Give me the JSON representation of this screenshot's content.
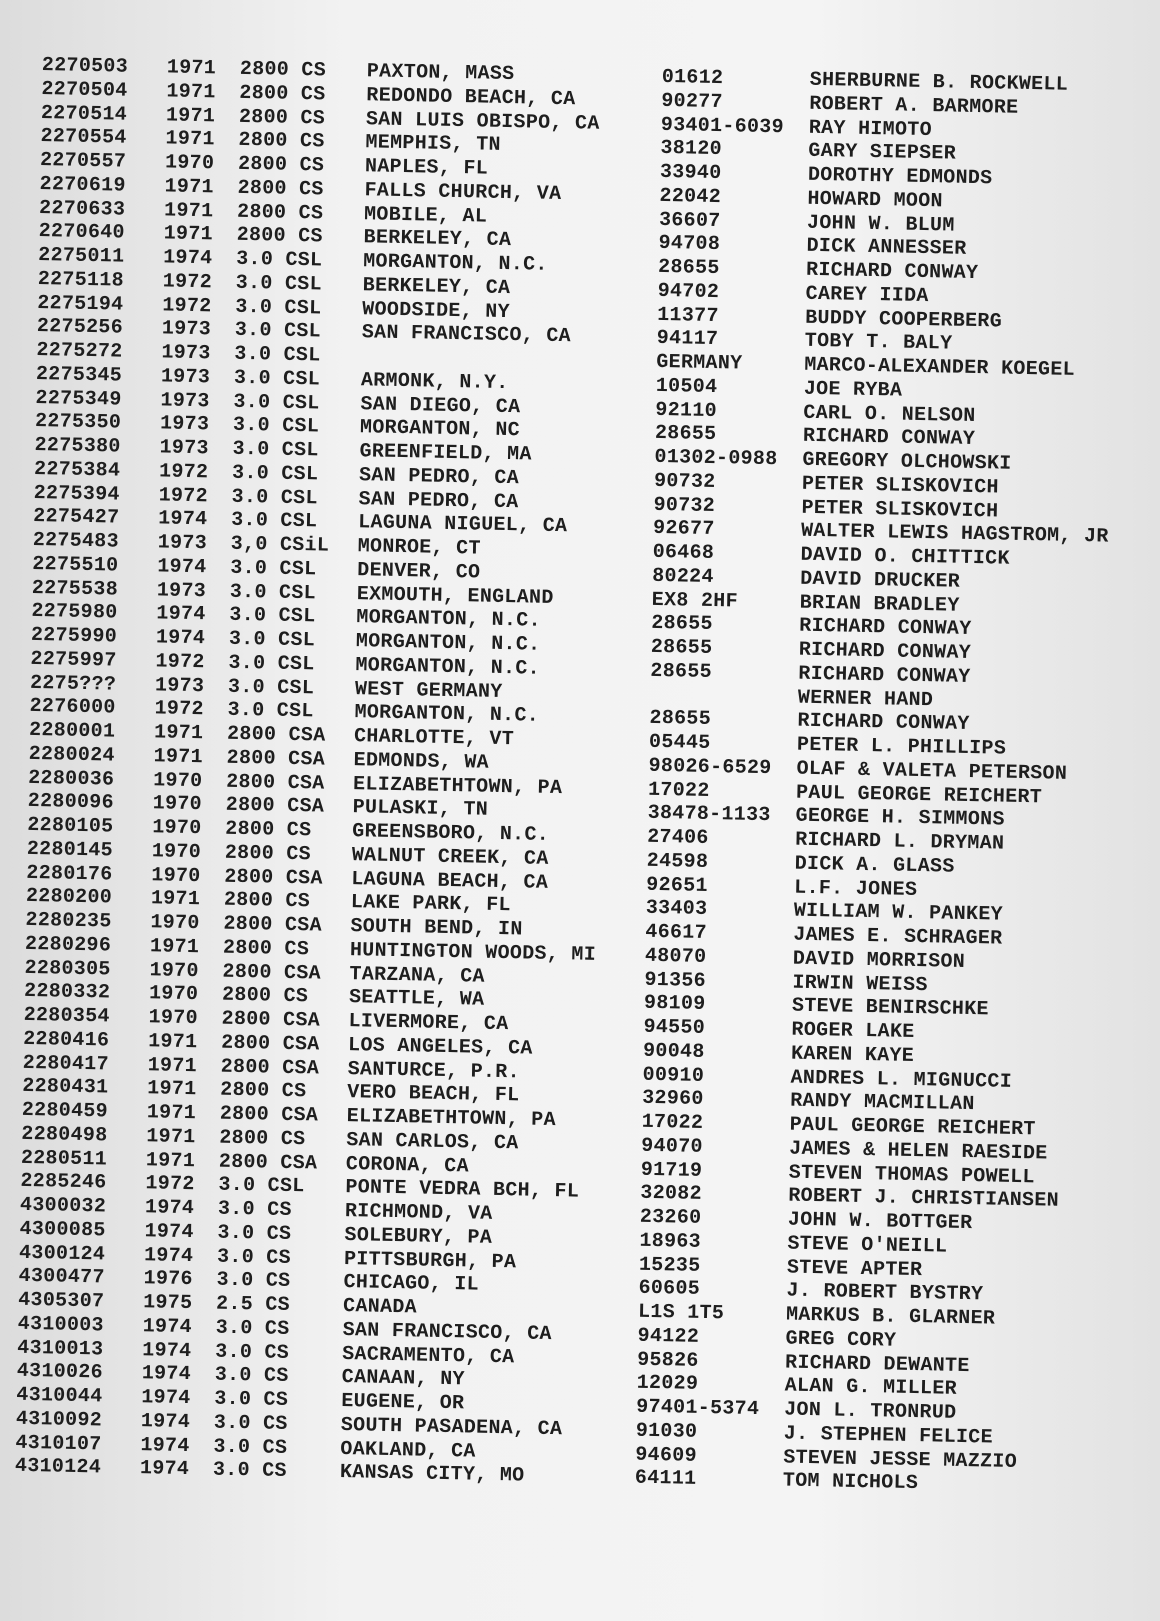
{
  "table": {
    "rows": [
      {
        "id": "2270503",
        "year": "1971",
        "model": "2800 CS",
        "city": "PAXTON, MASS",
        "zip": "01612",
        "name": "SHERBURNE B. ROCKWELL"
      },
      {
        "id": "2270504",
        "year": "1971",
        "model": "2800 CS",
        "city": "REDONDO BEACH, CA",
        "zip": "90277",
        "name": "ROBERT A. BARMORE"
      },
      {
        "id": "2270514",
        "year": "1971",
        "model": "2800 CS",
        "city": "SAN LUIS OBISPO, CA",
        "zip": "93401-6039",
        "name": "RAY HIMOTO"
      },
      {
        "id": "2270554",
        "year": "1971",
        "model": "2800 CS",
        "city": "MEMPHIS, TN",
        "zip": "38120",
        "name": "GARY SIEPSER"
      },
      {
        "id": "2270557",
        "year": "1970",
        "model": "2800 CS",
        "city": "NAPLES, FL",
        "zip": "33940",
        "name": "DOROTHY EDMONDS"
      },
      {
        "id": "2270619",
        "year": "1971",
        "model": "2800 CS",
        "city": "FALLS CHURCH, VA",
        "zip": "22042",
        "name": "HOWARD MOON"
      },
      {
        "id": "2270633",
        "year": "1971",
        "model": "2800 CS",
        "city": "MOBILE, AL",
        "zip": "36607",
        "name": "JOHN W. BLUM"
      },
      {
        "id": "2270640",
        "year": "1971",
        "model": "2800 CS",
        "city": "BERKELEY, CA",
        "zip": "94708",
        "name": "DICK ANNESSER"
      },
      {
        "id": "2275011",
        "year": "1974",
        "model": "3.0 CSL",
        "city": "MORGANTON, N.C.",
        "zip": "28655",
        "name": "RICHARD CONWAY"
      },
      {
        "id": "2275118",
        "year": "1972",
        "model": "3.0 CSL",
        "city": "BERKELEY, CA",
        "zip": "94702",
        "name": "CAREY IIDA"
      },
      {
        "id": "2275194",
        "year": "1972",
        "model": "3.0 CSL",
        "city": "WOODSIDE, NY",
        "zip": "11377",
        "name": "BUDDY COOPERBERG"
      },
      {
        "id": "2275256",
        "year": "1973",
        "model": "3.0 CSL",
        "city": "SAN FRANCISCO, CA",
        "zip": "94117",
        "name": "TOBY T. BALY"
      },
      {
        "id": "2275272",
        "year": "1973",
        "model": "3.0 CSL",
        "zip": "GERMANY",
        "name": "MARCO-ALEXANDER KOEGEL"
      },
      {
        "id": "2275345",
        "year": "1973",
        "model": "3.0 CSL",
        "city": "ARMONK, N.Y.",
        "zip": "10504",
        "name": "JOE RYBA"
      },
      {
        "id": "2275349",
        "year": "1973",
        "model": "3.0 CSL",
        "city": "SAN DIEGO, CA",
        "zip": "92110",
        "name": "CARL O. NELSON"
      },
      {
        "id": "2275350",
        "year": "1973",
        "model": "3.0 CSL",
        "city": "MORGANTON, NC",
        "zip": "28655",
        "name": "RICHARD CONWAY"
      },
      {
        "id": "2275380",
        "year": "1973",
        "model": "3.0 CSL",
        "city": "GREENFIELD, MA",
        "zip": "01302-0988",
        "name": "GREGORY OLCHOWSKI"
      },
      {
        "id": "2275384",
        "year": "1972",
        "model": "3.0 CSL",
        "city": "SAN PEDRO, CA",
        "zip": "90732",
        "name": "PETER SLISKOVICH"
      },
      {
        "id": "2275394",
        "year": "1972",
        "model": "3.0 CSL",
        "city": "SAN PEDRO, CA",
        "zip": "90732",
        "name": "PETER SLISKOVICH"
      },
      {
        "id": "2275427",
        "year": "1974",
        "model": "3.0 CSL",
        "city": "LAGUNA NIGUEL, CA",
        "zip": "92677",
        "name": "WALTER LEWIS HAGSTROM, JR"
      },
      {
        "id": "2275483",
        "year": "1973",
        "model": "3,0 CSiL",
        "city": "MONROE, CT",
        "zip": "06468",
        "name": "DAVID O. CHITTICK"
      },
      {
        "id": "2275510",
        "year": "1974",
        "model": "3.0 CSL",
        "city": "DENVER, CO",
        "zip": "80224",
        "name": "DAVID DRUCKER"
      },
      {
        "id": "2275538",
        "year": "1973",
        "model": "3.0 CSL",
        "city": "EXMOUTH, ENGLAND",
        "zip": "EX8 2HF",
        "name": "BRIAN BRADLEY"
      },
      {
        "id": "2275980",
        "year": "1974",
        "model": "3.0 CSL",
        "city": "MORGANTON, N.C.",
        "zip": "28655",
        "name": "RICHARD CONWAY"
      },
      {
        "id": "2275990",
        "year": "1974",
        "model": "3.0 CSL",
        "city": "MORGANTON, N.C.",
        "zip": "28655",
        "name": "RICHARD CONWAY"
      },
      {
        "id": "2275997",
        "year": "1972",
        "model": "3.0 CSL",
        "city": "MORGANTON, N.C.",
        "zip": "28655",
        "name": "RICHARD CONWAY"
      },
      {
        "id": "2275???",
        "year": "1973",
        "model": "3.0 CSL",
        "city": "WEST GERMANY",
        "name": "WERNER HAND"
      },
      {
        "id": "2276000",
        "year": "1972",
        "model": "3.0 CSL",
        "city": "MORGANTON, N.C.",
        "zip": "28655",
        "name": "RICHARD CONWAY"
      },
      {
        "id": "2280001",
        "year": "1971",
        "model": "2800 CSA",
        "city": "CHARLOTTE, VT",
        "zip": "05445",
        "name": "PETER L. PHILLIPS"
      },
      {
        "id": "2280024",
        "year": "1971",
        "model": "2800 CSA",
        "city": "EDMONDS, WA",
        "zip": "98026-6529",
        "name": "OLAF & VALETA PETERSON"
      },
      {
        "id": "2280036",
        "year": "1970",
        "model": "2800 CSA",
        "city": "ELIZABETHTOWN, PA",
        "zip": "17022",
        "name": "PAUL GEORGE REICHERT"
      },
      {
        "id": "2280096",
        "year": "1970",
        "model": "2800 CSA",
        "city": "PULASKI, TN",
        "zip": "38478-1133",
        "name": "GEORGE H. SIMMONS"
      },
      {
        "id": "2280105",
        "year": "1970",
        "model": "2800 CS",
        "city": "GREENSBORO, N.C.",
        "zip": "27406",
        "name": "RICHARD L. DRYMAN"
      },
      {
        "id": "2280145",
        "year": "1970",
        "model": "2800 CS",
        "city": "WALNUT CREEK, CA",
        "zip": "24598",
        "name": "DICK A. GLASS"
      },
      {
        "id": "2280176",
        "year": "1970",
        "model": "2800 CSA",
        "city": "LAGUNA BEACH, CA",
        "zip": "92651",
        "name": "L.F. JONES"
      },
      {
        "id": "2280200",
        "year": "1971",
        "model": "2800 CS",
        "city": "LAKE PARK, FL",
        "zip": "33403",
        "name": "WILLIAM W. PANKEY"
      },
      {
        "id": "2280235",
        "year": "1970",
        "model": "2800 CSA",
        "city": "SOUTH BEND, IN",
        "zip": "46617",
        "name": "JAMES E. SCHRAGER"
      },
      {
        "id": "2280296",
        "year": "1971",
        "model": "2800 CS",
        "city": "HUNTINGTON WOODS, MI",
        "zip": "48070",
        "name": "DAVID MORRISON"
      },
      {
        "id": "2280305",
        "year": "1970",
        "model": "2800 CSA",
        "city": "TARZANA, CA",
        "zip": "91356",
        "name": "IRWIN WEISS"
      },
      {
        "id": "2280332",
        "year": "1970",
        "model": "2800 CS",
        "city": "SEATTLE, WA",
        "zip": "98109",
        "name": "STEVE BENIRSCHKE"
      },
      {
        "id": "2280354",
        "year": "1970",
        "model": "2800 CSA",
        "city": "LIVERMORE, CA",
        "zip": "94550",
        "name": "ROGER LAKE"
      },
      {
        "id": "2280416",
        "year": "1971",
        "model": "2800 CSA",
        "city": "LOS ANGELES, CA",
        "zip": "90048",
        "name": "KAREN KAYE"
      },
      {
        "id": "2280417",
        "year": "1971",
        "model": "2800 CSA",
        "city": "SANTURCE, P.R.",
        "zip": "00910",
        "name": "ANDRES L. MIGNUCCI"
      },
      {
        "id": "2280431",
        "year": "1971",
        "model": "2800 CS",
        "city": "VERO BEACH, FL",
        "zip": "32960",
        "name": "RANDY MACMILLAN"
      },
      {
        "id": "2280459",
        "year": "1971",
        "model": "2800 CSA",
        "city": "ELIZABETHTOWN, PA",
        "zip": "17022",
        "name": "PAUL GEORGE REICHERT"
      },
      {
        "id": "2280498",
        "year": "1971",
        "model": "2800 CS",
        "city": "SAN CARLOS, CA",
        "zip": "94070",
        "name": "JAMES & HELEN RAESIDE"
      },
      {
        "id": "2280511",
        "year": "1971",
        "model": "2800 CSA",
        "city": "CORONA, CA",
        "zip": "91719",
        "name": "STEVEN THOMAS POWELL"
      },
      {
        "id": "2285246",
        "year": "1972",
        "model": "3.0 CSL",
        "city": "PONTE VEDRA BCH, FL",
        "zip": "32082",
        "name": "ROBERT J. CHRISTIANSEN"
      },
      {
        "id": "4300032",
        "year": "1974",
        "model": "3.0 CS",
        "city": "RICHMOND, VA",
        "zip": "23260",
        "name": "JOHN W. BOTTGER"
      },
      {
        "id": "4300085",
        "year": "1974",
        "model": "3.0 CS",
        "city": "SOLEBURY, PA",
        "zip": "18963",
        "name": "STEVE O'NEILL"
      },
      {
        "id": "4300124",
        "year": "1974",
        "model": "3.0 CS",
        "city": "PITTSBURGH, PA",
        "zip": "15235",
        "name": "STEVE APTER"
      },
      {
        "id": "4300477",
        "year": "1976",
        "model": "3.0 CS",
        "city": "CHICAGO, IL",
        "zip": "60605",
        "name": "J. ROBERT BYSTRY"
      },
      {
        "id": "4305307",
        "year": "1975",
        "model": "2.5 CS",
        "city": "CANADA",
        "zip": "L1S 1T5",
        "name": "MARKUS B. GLARNER"
      },
      {
        "id": "4310003",
        "year": "1974",
        "model": "3.0 CS",
        "city": "SAN FRANCISCO, CA",
        "zip": "94122",
        "name": "GREG CORY"
      },
      {
        "id": "4310013",
        "year": "1974",
        "model": "3.0 CS",
        "city": "SACRAMENTO, CA",
        "zip": "95826",
        "name": "RICHARD DEWANTE"
      },
      {
        "id": "4310026",
        "year": "1974",
        "model": "3.0 CS",
        "city": "CANAAN, NY",
        "zip": "12029",
        "name": "ALAN G. MILLER"
      },
      {
        "id": "4310044",
        "year": "1974",
        "model": "3.0 CS",
        "city": "EUGENE, OR",
        "zip": "97401-5374",
        "name": "JON L. TRONRUD"
      },
      {
        "id": "4310092",
        "year": "1974",
        "model": "3.0 CS",
        "city": "SOUTH PASADENA, CA",
        "zip": "91030",
        "name": "J. STEPHEN FELICE"
      },
      {
        "id": "4310107",
        "year": "1974",
        "model": "3.0 CS",
        "city": "OAKLAND, CA",
        "zip": "94609",
        "name": "STEVEN JESSE MAZZIO"
      },
      {
        "id": "4310124",
        "year": "1974",
        "model": "3.0 CS",
        "city": "KANSAS CITY, MO",
        "zip": "64111",
        "name": "TOM NICHOLS"
      }
    ]
  }
}
